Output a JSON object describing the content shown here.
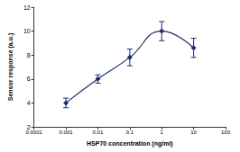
{
  "chart_data": {
    "type": "line",
    "x_label": "HSP70 concentration (ng/ml)",
    "y_label": "Sensor response (a.u.)",
    "x": [
      0.001,
      0.01,
      0.1,
      1,
      10
    ],
    "values": [
      4.0,
      6.0,
      7.8,
      10.0,
      8.6
    ],
    "errors": [
      0.4,
      0.35,
      0.7,
      0.8,
      0.8
    ],
    "color": "#1f2d6b",
    "marker": "diamond",
    "line_style": "solid",
    "log": "x",
    "xlim": [
      0.0001,
      100
    ],
    "xticks": [
      0.0001,
      0.001,
      0.01,
      0.1,
      1,
      10,
      100
    ],
    "ylim": [
      2,
      12
    ],
    "yticks": [
      2,
      4,
      6,
      8,
      10,
      12
    ],
    "grid": false
  }
}
